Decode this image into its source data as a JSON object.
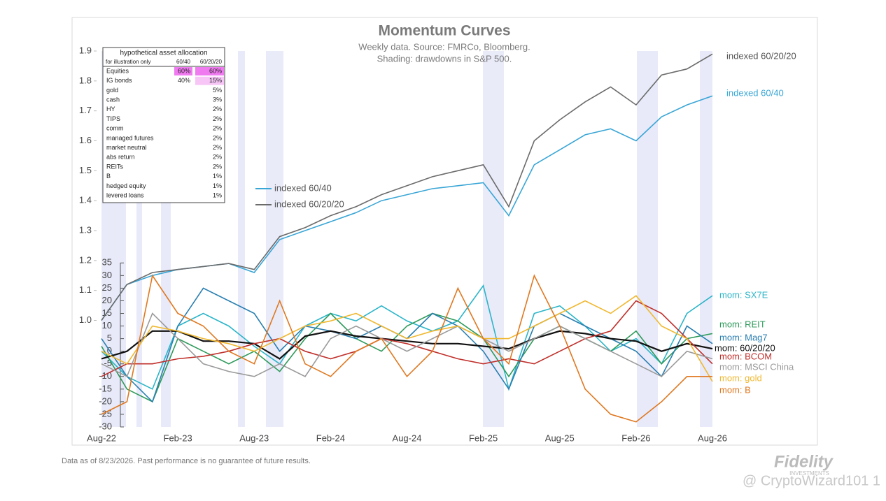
{
  "chart_data": {
    "type": "line",
    "title": "Momentum Curves",
    "subtitle": [
      "Weekly data.  Source: FMRCo, Bloomberg.",
      "Shading: drawdowns in S&P 500."
    ],
    "categories": [
      "Aug-22",
      null,
      null,
      "Feb-23",
      null,
      null,
      "Aug-23",
      null,
      null,
      "Feb-24",
      null,
      null,
      "Aug-24",
      null,
      null,
      "Feb-25",
      null,
      null,
      "Aug-25",
      null,
      null,
      "Feb-26",
      null,
      null,
      "Aug-26"
    ],
    "ylim": [
      0.644,
      1.9
    ],
    "yticks": [
      {
        "value": 1,
        "label": "1.0"
      },
      1.1,
      1.2,
      1.3,
      1.4,
      1.5,
      1.6,
      1.7,
      1.8,
      1.9
    ],
    "y2lim": [
      -30,
      119
    ],
    "y2ticks": [
      -30,
      -25,
      -20,
      -15,
      -10,
      -5,
      0,
      5,
      10,
      15,
      20,
      25,
      30,
      35
    ],
    "series": [
      {
        "name": "indexed 60/40",
        "color": "#3aa6d6",
        "values": [
          1.0,
          1.12,
          1.15,
          1.17,
          1.18,
          1.19,
          1.16,
          1.27,
          1.3,
          1.33,
          1.36,
          1.4,
          1.42,
          1.44,
          1.45,
          1.46,
          1.35,
          1.52,
          1.57,
          1.62,
          1.64,
          1.6,
          1.68,
          1.72,
          1.75
        ]
      },
      {
        "name": "indexed 60/20/20",
        "color": "#6b6b6b",
        "values": [
          1.0,
          1.12,
          1.16,
          1.17,
          1.18,
          1.19,
          1.17,
          1.28,
          1.31,
          1.35,
          1.38,
          1.42,
          1.45,
          1.48,
          1.5,
          1.52,
          1.38,
          1.6,
          1.67,
          1.73,
          1.78,
          1.72,
          1.82,
          1.84,
          1.89
        ]
      },
      {
        "name": "mom: SX7E",
        "axis": "y2",
        "color": "#2bb5c8",
        "values": [
          0,
          -10,
          -15,
          10,
          15,
          10,
          2,
          -5,
          10,
          15,
          12,
          18,
          12,
          8,
          12,
          26,
          -15,
          15,
          18,
          10,
          0,
          5,
          -5,
          15,
          22
        ]
      },
      {
        "name": "mom: REIT",
        "axis": "y2",
        "color": "#2e9a5a",
        "values": [
          2,
          -15,
          -20,
          5,
          0,
          -5,
          0,
          -8,
          5,
          15,
          5,
          0,
          10,
          15,
          12,
          5,
          -10,
          5,
          10,
          5,
          0,
          8,
          -5,
          5,
          7
        ]
      },
      {
        "name": "mom: Mag7",
        "axis": "y2",
        "color": "#2a7fb0",
        "values": [
          5,
          -10,
          -20,
          10,
          25,
          20,
          15,
          0,
          10,
          8,
          5,
          10,
          5,
          15,
          10,
          0,
          -15,
          10,
          15,
          10,
          5,
          0,
          -10,
          10,
          3
        ]
      },
      {
        "name": "mom: 60/20/20",
        "axis": "y2",
        "color": "#111111",
        "values": [
          -3,
          0,
          8,
          8,
          4,
          4,
          3,
          -3,
          6,
          8,
          6,
          5,
          4,
          3,
          3,
          2,
          1,
          5,
          8,
          7,
          5,
          4,
          0,
          3,
          1
        ]
      },
      {
        "name": "mom: BCOM",
        "axis": "y2",
        "color": "#c0302b",
        "values": [
          -10,
          -5,
          -5,
          -3,
          -2,
          0,
          3,
          5,
          0,
          -3,
          0,
          5,
          3,
          0,
          -3,
          -5,
          -3,
          -5,
          0,
          5,
          8,
          20,
          15,
          5,
          -5
        ]
      },
      {
        "name": "mom: MSCI China",
        "axis": "y2",
        "color": "#9a9a9a",
        "values": [
          -5,
          -10,
          15,
          5,
          -5,
          -8,
          -10,
          -5,
          -10,
          5,
          10,
          5,
          0,
          5,
          10,
          5,
          0,
          5,
          10,
          5,
          0,
          -5,
          -10,
          0,
          -3
        ]
      },
      {
        "name": "mom: gold",
        "axis": "y2",
        "color": "#f0b830",
        "values": [
          0,
          -5,
          10,
          8,
          5,
          3,
          0,
          5,
          10,
          12,
          15,
          10,
          5,
          8,
          10,
          5,
          5,
          10,
          15,
          20,
          15,
          22,
          10,
          5,
          -12
        ]
      },
      {
        "name": "mom: B",
        "axis": "y2",
        "color": "#e07820",
        "values": [
          -25,
          -20,
          30,
          15,
          10,
          0,
          -5,
          20,
          -5,
          -10,
          0,
          5,
          -10,
          0,
          25,
          5,
          -5,
          30,
          10,
          -15,
          -25,
          -28,
          -20,
          -10,
          -10
        ]
      }
    ]
  },
  "allocation_table": {
    "title": "hypothetical asset allocation",
    "subtitle": "for illustration only",
    "columns": [
      "60/40",
      "60/20/20"
    ],
    "rows": [
      [
        "Equities",
        "60%",
        "60%"
      ],
      [
        "IG bonds",
        "40%",
        "15%"
      ],
      [
        "gold",
        "",
        "5%"
      ],
      [
        "cash",
        "",
        "3%"
      ],
      [
        "HY",
        "",
        "2%"
      ],
      [
        "TIPS",
        "",
        "2%"
      ],
      [
        "comm",
        "",
        "2%"
      ],
      [
        "managed futures",
        "",
        "2%"
      ],
      [
        "market neutral",
        "",
        "2%"
      ],
      [
        "abs return",
        "",
        "2%"
      ],
      [
        "REITs",
        "",
        "2%"
      ],
      [
        "B",
        "",
        "1%"
      ],
      [
        "hedged equity",
        "",
        "1%"
      ],
      [
        "levered loans",
        "",
        "1%"
      ]
    ]
  },
  "footer": "Data as of 8/23/2026. Past performance is no guarantee of future results.",
  "logo": {
    "name": "Fidelity",
    "tagline": "INVESTMENTS"
  },
  "watermark": "@ CryptoWizard101 1"
}
